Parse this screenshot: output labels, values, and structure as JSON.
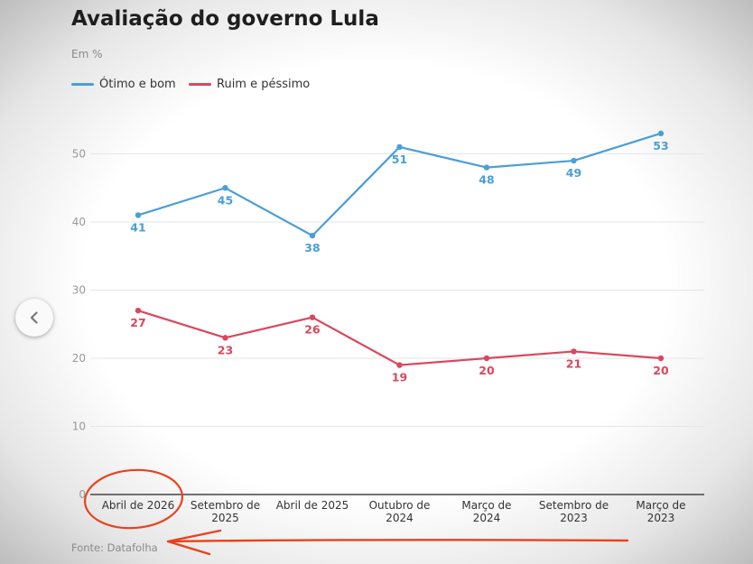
{
  "header": {
    "title": "Avaliação do governo Lula",
    "subtitle": "Em %"
  },
  "footer": {
    "source": "Fonte: Datafolha"
  },
  "nav": {
    "prev_icon": "chevron-left-icon"
  },
  "colors": {
    "good": "#4a9fd5",
    "bad": "#d9475e",
    "annotation": "#e8421c"
  },
  "chart_data": {
    "type": "line",
    "title": "Avaliação do governo Lula",
    "subtitle": "Em %",
    "categories": [
      "Abril de 2026",
      "Setembro de 2025",
      "Abril de 2025",
      "Outubro de 2024",
      "Março de 2024",
      "Setembro de 2023",
      "Março de 2023"
    ],
    "series": [
      {
        "name": "Ótimo e bom",
        "values": [
          41,
          45,
          38,
          51,
          48,
          49,
          53
        ],
        "color": "#4a9fd5"
      },
      {
        "name": "Ruim e péssimo",
        "values": [
          27,
          23,
          26,
          19,
          20,
          21,
          20
        ],
        "color": "#d9475e"
      }
    ],
    "yticks": [
      0,
      10,
      20,
      30,
      40,
      50
    ],
    "ylim": [
      0,
      50
    ],
    "grid": true,
    "legend": "top-left",
    "source": "Fonte: Datafolha"
  }
}
